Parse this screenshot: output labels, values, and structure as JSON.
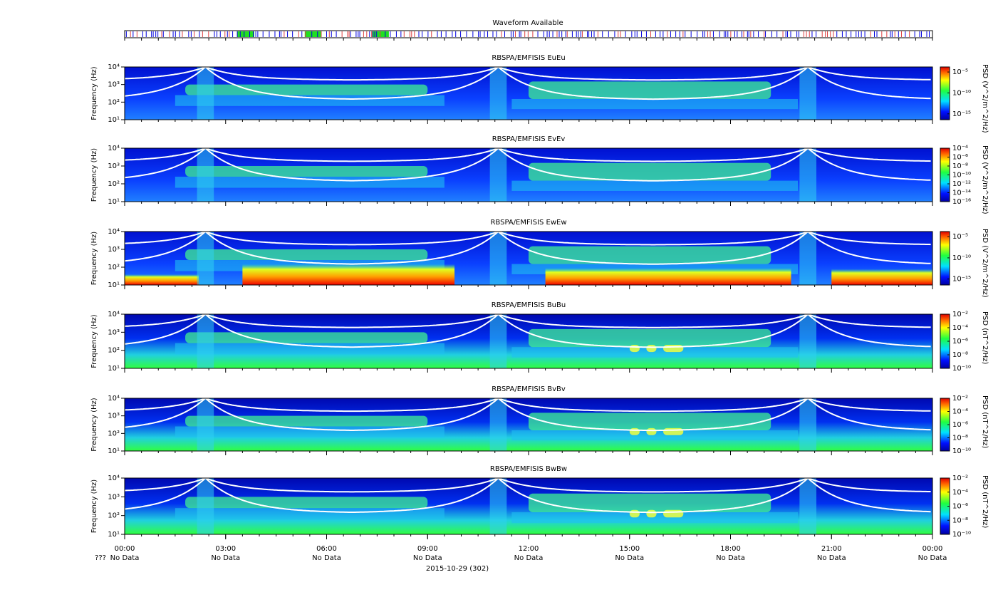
{
  "waveform": {
    "title": "Waveform Available"
  },
  "x_axis": {
    "xlim": [
      0,
      24
    ],
    "xticks": [
      {
        "value": 0,
        "label": "00:00"
      },
      {
        "value": 3,
        "label": "03:00"
      },
      {
        "value": 6,
        "label": "06:00"
      },
      {
        "value": 9,
        "label": "09:00"
      },
      {
        "value": 12,
        "label": "12:00"
      },
      {
        "value": 15,
        "label": "15:00"
      },
      {
        "value": 18,
        "label": "18:00"
      },
      {
        "value": 21,
        "label": "21:00"
      },
      {
        "value": 24,
        "label": "00:00"
      }
    ],
    "notes": [
      "No Data",
      "No Data",
      "No Data",
      "No Data",
      "No Data",
      "No Data",
      "No Data",
      "No Data",
      "No Data"
    ],
    "prefix": "???",
    "date": "2015-10-29 (302)"
  },
  "chart_data": [
    {
      "type": "spectrogram",
      "title": "RBSPA/EMFISIS  EuEu",
      "ylabel": "Frequency (Hz)",
      "ylim": [
        10,
        10000
      ],
      "log": true,
      "yticks": [
        {
          "value": 10,
          "label": "10¹"
        },
        {
          "value": 100,
          "label": "10²"
        },
        {
          "value": 1000,
          "label": "10³"
        },
        {
          "value": 10000,
          "label": "10⁴"
        }
      ],
      "colorbar": {
        "label": "PSD (V^2/m^2/Hz)",
        "lim": [
          4e-17,
          0.00016
        ],
        "ticks": [
          {
            "value": 1e-05,
            "label": "10⁻⁵"
          },
          {
            "value": 1e-10,
            "label": "10⁻¹⁰"
          },
          {
            "value": 1e-15,
            "label": "10⁻¹⁵"
          }
        ]
      }
    },
    {
      "type": "spectrogram",
      "title": "RBSPA/EMFISIS  EvEv",
      "ylabel": "Frequency (Hz)",
      "ylim": [
        10,
        10000
      ],
      "log": true,
      "yticks": [
        {
          "value": 10,
          "label": "10¹"
        },
        {
          "value": 100,
          "label": "10²"
        },
        {
          "value": 1000,
          "label": "10³"
        },
        {
          "value": 10000,
          "label": "10⁴"
        }
      ],
      "colorbar": {
        "label": "PSD (V^2/m^2/Hz)",
        "lim": [
          1e-16,
          0.0001
        ],
        "ticks": [
          {
            "value": 0.0001,
            "label": "10⁻⁴"
          },
          {
            "value": 1e-06,
            "label": "10⁻⁶"
          },
          {
            "value": 1e-08,
            "label": "10⁻⁸"
          },
          {
            "value": 1e-10,
            "label": "10⁻¹⁰"
          },
          {
            "value": 1e-12,
            "label": "10⁻¹²"
          },
          {
            "value": 1e-14,
            "label": "10⁻¹⁴"
          },
          {
            "value": 1e-16,
            "label": "10⁻¹⁶"
          }
        ]
      }
    },
    {
      "type": "spectrogram",
      "title": "RBSPA/EMFISIS  EwEw",
      "ylabel": "Frequency (Hz)",
      "ylim": [
        10,
        10000
      ],
      "log": true,
      "yticks": [
        {
          "value": 10,
          "label": "10¹"
        },
        {
          "value": 100,
          "label": "10²"
        },
        {
          "value": 1000,
          "label": "10³"
        },
        {
          "value": 10000,
          "label": "10⁴"
        }
      ],
      "colorbar": {
        "label": "PSD (V^2/m^2/Hz)",
        "lim": [
          4e-17,
          0.00016
        ],
        "ticks": [
          {
            "value": 1e-05,
            "label": "10⁻⁵"
          },
          {
            "value": 1e-10,
            "label": "10⁻¹⁰"
          },
          {
            "value": 1e-15,
            "label": "10⁻¹⁵"
          }
        ]
      }
    },
    {
      "type": "spectrogram",
      "title": "RBSPA/EMFISIS  BuBu",
      "ylabel": "Frequency (Hz)",
      "ylim": [
        10,
        10000
      ],
      "log": true,
      "yticks": [
        {
          "value": 10,
          "label": "10¹"
        },
        {
          "value": 100,
          "label": "10²"
        },
        {
          "value": 1000,
          "label": "10³"
        },
        {
          "value": 10000,
          "label": "10⁴"
        }
      ],
      "colorbar": {
        "label": "PSD (nT^2/Hz)",
        "lim": [
          1e-10,
          0.01
        ],
        "ticks": [
          {
            "value": 0.01,
            "label": "10⁻²"
          },
          {
            "value": 0.0001,
            "label": "10⁻⁴"
          },
          {
            "value": 1e-06,
            "label": "10⁻⁶"
          },
          {
            "value": 1e-08,
            "label": "10⁻⁸"
          },
          {
            "value": 1e-10,
            "label": "10⁻¹⁰"
          }
        ]
      }
    },
    {
      "type": "spectrogram",
      "title": "RBSPA/EMFISIS  BvBv",
      "ylabel": "Frequency (Hz)",
      "ylim": [
        10,
        10000
      ],
      "log": true,
      "yticks": [
        {
          "value": 10,
          "label": "10¹"
        },
        {
          "value": 100,
          "label": "10²"
        },
        {
          "value": 1000,
          "label": "10³"
        },
        {
          "value": 10000,
          "label": "10⁴"
        }
      ],
      "colorbar": {
        "label": "PSD (nT^2/Hz)",
        "lim": [
          1e-10,
          0.01
        ],
        "ticks": [
          {
            "value": 0.01,
            "label": "10⁻²"
          },
          {
            "value": 0.0001,
            "label": "10⁻⁴"
          },
          {
            "value": 1e-06,
            "label": "10⁻⁶"
          },
          {
            "value": 1e-08,
            "label": "10⁻⁸"
          },
          {
            "value": 1e-10,
            "label": "10⁻¹⁰"
          }
        ]
      }
    },
    {
      "type": "spectrogram",
      "title": "RBSPA/EMFISIS  BwBw",
      "ylabel": "Frequency (Hz)",
      "ylim": [
        10,
        10000
      ],
      "log": true,
      "yticks": [
        {
          "value": 10,
          "label": "10¹"
        },
        {
          "value": 100,
          "label": "10²"
        },
        {
          "value": 1000,
          "label": "10³"
        },
        {
          "value": 10000,
          "label": "10⁴"
        }
      ],
      "colorbar": {
        "label": "PSD (nT^2/Hz)",
        "lim": [
          1e-10,
          0.01
        ],
        "ticks": [
          {
            "value": 0.01,
            "label": "10⁻²"
          },
          {
            "value": 0.0001,
            "label": "10⁻⁴"
          },
          {
            "value": 1e-06,
            "label": "10⁻⁶"
          },
          {
            "value": 1e-08,
            "label": "10⁻⁸"
          },
          {
            "value": 1e-10,
            "label": "10⁻¹⁰"
          }
        ]
      }
    }
  ]
}
